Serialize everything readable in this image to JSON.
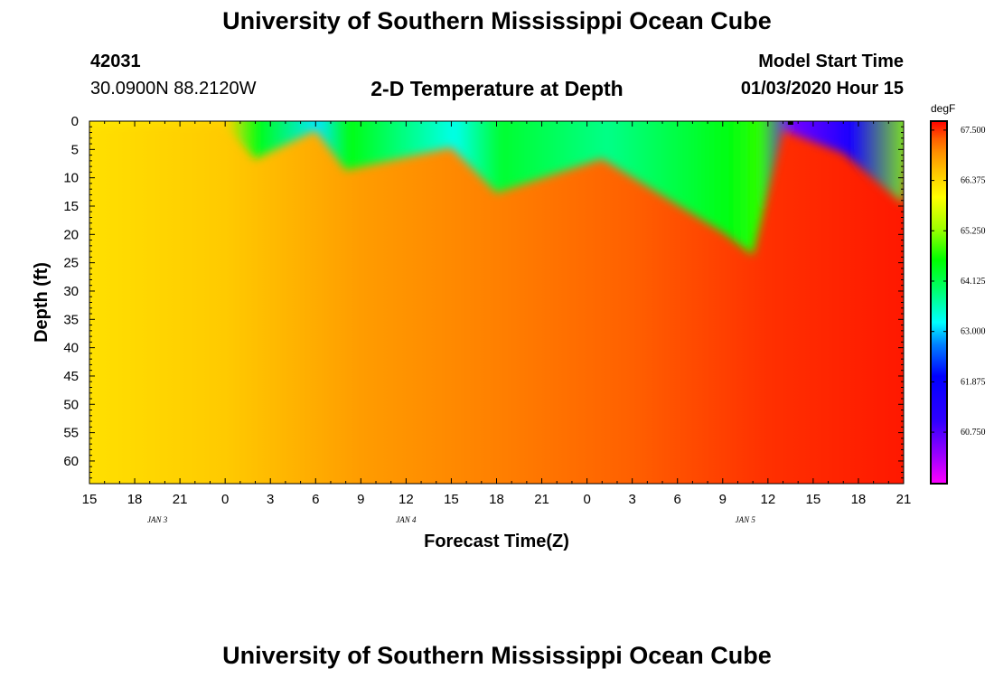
{
  "page": {
    "title_top": "University of Southern Mississippi Ocean Cube",
    "title_bottom": "University of Southern Mississippi Ocean Cube",
    "station_id": "42031",
    "station_coords": "30.0900N 88.2120W",
    "plot_title": "2-D Temperature at Depth",
    "model_start_label": "Model Start Time",
    "model_start_value": "01/03/2020 Hour 15"
  },
  "chart_data": {
    "type": "heatmap",
    "title": "2-D Temperature at Depth",
    "xlabel": "Forecast Time(Z)",
    "ylabel": "Depth (ft)",
    "x_tick_labels": [
      "15",
      "18",
      "21",
      "0",
      "3",
      "6",
      "9",
      "12",
      "15",
      "18",
      "21",
      "0",
      "3",
      "6",
      "9",
      "12",
      "15",
      "18",
      "21"
    ],
    "x_date_labels": [
      {
        "label": "JAN 3",
        "tick_index": 1.5
      },
      {
        "label": "JAN 4",
        "tick_index": 7
      },
      {
        "label": "JAN 5",
        "tick_index": 14.5
      }
    ],
    "ylim": [
      0,
      64
    ],
    "y_tick_values": [
      0,
      5,
      10,
      15,
      20,
      25,
      30,
      35,
      40,
      45,
      50,
      55,
      60
    ],
    "colorbar": {
      "unit": "degF",
      "min": 59.6,
      "max": 67.7,
      "tick_labels": [
        "67.500",
        "66.375",
        "65.250",
        "64.125",
        "63.000",
        "61.875",
        "60.750"
      ],
      "tick_values": [
        67.5,
        66.375,
        65.25,
        64.125,
        63.0,
        61.875,
        60.75
      ]
    },
    "deep_temperature_by_forecast_hour": [
      {
        "hour": 0,
        "degF": 66.3
      },
      {
        "hour": 9,
        "degF": 66.5
      },
      {
        "hour": 18,
        "degF": 66.9
      },
      {
        "hour": 27,
        "degF": 67.1
      },
      {
        "hour": 36,
        "degF": 67.3
      },
      {
        "hour": 45,
        "degF": 67.5
      },
      {
        "hour": 54,
        "degF": 67.6
      }
    ],
    "surface_layer_by_forecast_hour": [
      {
        "hour": 0,
        "depth_ft": 0,
        "degF": 66.2
      },
      {
        "hour": 9,
        "depth_ft": 0,
        "degF": 66.4
      },
      {
        "hour": 11,
        "depth_ft": 6,
        "degF": 64.5
      },
      {
        "hour": 15,
        "depth_ft": 1,
        "degF": 63.1
      },
      {
        "hour": 17,
        "depth_ft": 8,
        "degF": 64.5
      },
      {
        "hour": 24,
        "depth_ft": 4,
        "degF": 63.3
      },
      {
        "hour": 27,
        "depth_ft": 12,
        "degF": 64.3
      },
      {
        "hour": 34,
        "depth_ft": 6,
        "degF": 63.8
      },
      {
        "hour": 42,
        "depth_ft": 19,
        "degF": 64.5
      },
      {
        "hour": 44,
        "depth_ft": 23,
        "degF": 64.8
      },
      {
        "hour": 46,
        "depth_ft": 1,
        "degF": 60.5
      },
      {
        "hour": 50,
        "depth_ft": 5,
        "degF": 61.5
      },
      {
        "hour": 54,
        "depth_ft": 14,
        "degF": 65.2
      }
    ]
  }
}
